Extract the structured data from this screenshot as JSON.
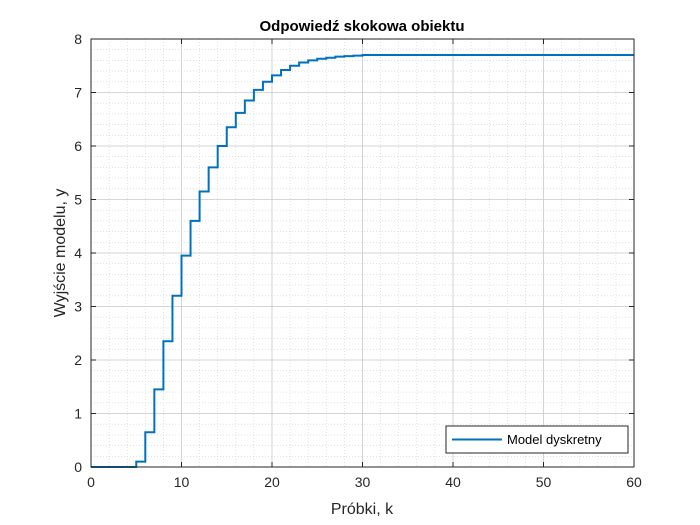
{
  "chart_data": {
    "type": "line",
    "title": "Odpowiedź skokowa obiektu",
    "xlabel": "Próbki, k",
    "ylabel": "Wyjście modelu, y",
    "xlim": [
      0,
      60
    ],
    "ylim": [
      0,
      8
    ],
    "xticks": [
      0,
      10,
      20,
      30,
      40,
      50,
      60
    ],
    "yticks": [
      0,
      1,
      2,
      3,
      4,
      5,
      6,
      7,
      8
    ],
    "grid": true,
    "minor_grid": true,
    "legend_position": "bottom-right",
    "step": true,
    "series": [
      {
        "name": "Model dyskretny",
        "color": "#0072BD",
        "x": [
          0,
          1,
          2,
          3,
          4,
          5,
          6,
          7,
          8,
          9,
          10,
          11,
          12,
          13,
          14,
          15,
          16,
          17,
          18,
          19,
          20,
          21,
          22,
          23,
          24,
          25,
          26,
          27,
          28,
          29,
          30,
          31,
          32,
          33,
          34,
          35,
          36,
          37,
          38,
          39,
          40,
          41,
          42,
          43,
          44,
          45,
          46,
          47,
          48,
          49,
          50,
          51,
          52,
          53,
          54,
          55,
          56,
          57,
          58,
          59,
          60
        ],
        "y": [
          0,
          0,
          0,
          0,
          0,
          0.1,
          0.65,
          1.45,
          2.35,
          3.2,
          3.95,
          4.6,
          5.15,
          5.6,
          6.0,
          6.35,
          6.62,
          6.85,
          7.05,
          7.2,
          7.32,
          7.42,
          7.5,
          7.56,
          7.6,
          7.63,
          7.65,
          7.67,
          7.68,
          7.69,
          7.7,
          7.7,
          7.7,
          7.7,
          7.7,
          7.7,
          7.7,
          7.7,
          7.7,
          7.7,
          7.7,
          7.7,
          7.7,
          7.7,
          7.7,
          7.7,
          7.7,
          7.7,
          7.7,
          7.7,
          7.7,
          7.7,
          7.7,
          7.7,
          7.7,
          7.7,
          7.7,
          7.7,
          7.7,
          7.7,
          7.7
        ]
      }
    ]
  }
}
